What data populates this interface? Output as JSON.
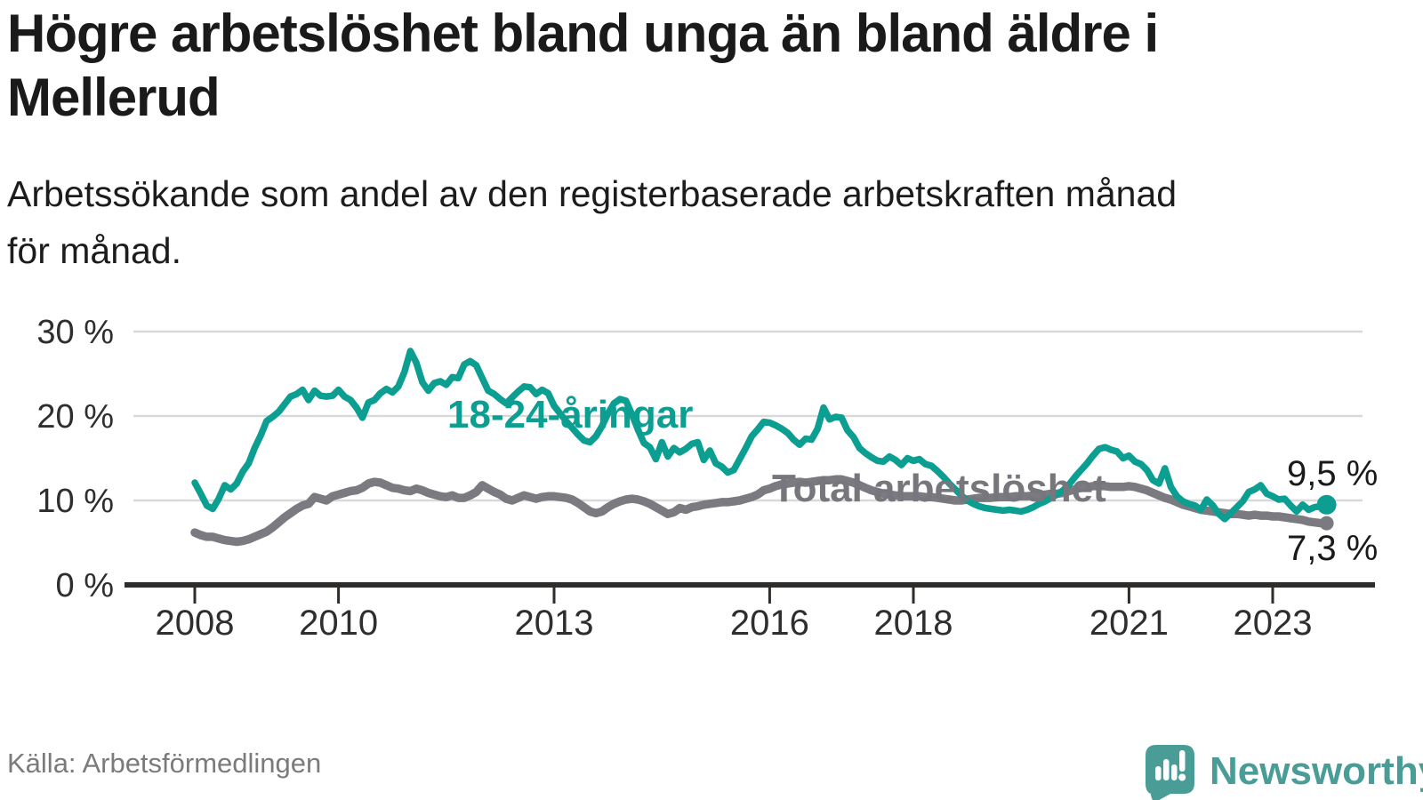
{
  "header": {
    "title_lines": [
      "Högre arbetslöshet bland unga än bland äldre i",
      "Mellerud"
    ],
    "subtitle_lines": [
      "Arbetssökande som andel av den registerbaserade arbetskraften månad",
      "för månad."
    ]
  },
  "footer": {
    "source": "Källa: Arbetsförmedlingen",
    "logo_text": "Newsworthy"
  },
  "colors": {
    "youth_teal": "#0d9e92",
    "total_gray": "#7b7a80",
    "label_gray": "#77767c",
    "gridline": "#d9d9d9",
    "axis": "#2e2d2c",
    "text_dark": "#1a1a1a",
    "logo_teal": "#4a9d97"
  },
  "chart_data": {
    "type": "line",
    "title": "Högre arbetslöshet bland unga än bland äldre i Mellerud",
    "subtitle": "Arbetssökande som andel av den registerbaserade arbetskraften månad för månad.",
    "x_unit": "month",
    "x_start": "2008-01",
    "x_end": "2023-10",
    "grid": "horizontal",
    "legend_position": "inline-labels",
    "y_axis": {
      "unit": "%",
      "ylim": [
        0,
        32
      ],
      "tick_values": [
        30,
        20,
        10,
        0
      ],
      "tick_labels": [
        "30 %",
        "20 %",
        "10 %",
        "0 %"
      ]
    },
    "x_axis": {
      "tick_years": [
        2008,
        2010,
        2013,
        2016,
        2018,
        2021,
        2023
      ],
      "tick_labels": [
        "2008",
        "2010",
        "2013",
        "2016",
        "2018",
        "2021",
        "2023"
      ]
    },
    "series": [
      {
        "name": "18-24-åringar",
        "label_text": "18-24-åringar",
        "end_label": "9,5 %",
        "end_value": 9.5,
        "color": "#0d9e92",
        "values": [
          12.1,
          10.8,
          9.4,
          9.0,
          10.2,
          11.8,
          11.3,
          12.0,
          13.4,
          14.4,
          16.2,
          17.7,
          19.4,
          19.9,
          20.5,
          21.4,
          22.3,
          22.6,
          23.1,
          21.9,
          23.0,
          22.4,
          22.3,
          22.4,
          23.1,
          22.3,
          21.9,
          21.0,
          19.8,
          21.6,
          21.9,
          22.7,
          23.2,
          22.8,
          23.5,
          25.2,
          27.7,
          26.3,
          24.0,
          23.0,
          23.9,
          24.1,
          23.7,
          24.6,
          24.5,
          26.1,
          26.5,
          26.0,
          24.5,
          23.0,
          22.6,
          22.0,
          21.5,
          22.2,
          22.9,
          23.5,
          23.4,
          22.6,
          23.1,
          22.7,
          21.2,
          20.3,
          19.4,
          18.6,
          17.8,
          17.1,
          16.9,
          17.6,
          18.8,
          20.3,
          21.5,
          22.0,
          21.8,
          20.2,
          18.4,
          16.8,
          16.3,
          14.9,
          16.9,
          15.2,
          16.2,
          15.7,
          16.1,
          16.7,
          16.9,
          14.8,
          15.9,
          14.4,
          14.0,
          13.3,
          13.6,
          14.9,
          16.2,
          17.6,
          18.4,
          19.3,
          19.2,
          18.9,
          18.5,
          18.0,
          17.2,
          16.6,
          17.3,
          17.2,
          18.5,
          21.0,
          19.6,
          19.9,
          19.8,
          18.3,
          17.5,
          16.2,
          15.6,
          15.1,
          14.7,
          14.6,
          15.2,
          14.8,
          14.2,
          15.0,
          14.7,
          14.9,
          14.3,
          14.1,
          13.5,
          12.8,
          12.0,
          11.3,
          10.6,
          10.0,
          9.6,
          9.3,
          9.1,
          9.0,
          8.9,
          8.8,
          8.9,
          8.8,
          8.7,
          8.9,
          9.2,
          9.6,
          9.9,
          10.3,
          10.7,
          11.2,
          11.9,
          12.8,
          13.6,
          14.4,
          15.3,
          16.1,
          16.3,
          16.0,
          15.8,
          15.0,
          15.3,
          14.6,
          14.3,
          13.6,
          12.4,
          12.0,
          13.8,
          11.6,
          10.5,
          9.9,
          9.6,
          9.4,
          8.9,
          10.1,
          9.4,
          8.4,
          7.8,
          8.5,
          9.2,
          9.9,
          11.0,
          11.3,
          11.8,
          10.8,
          10.5,
          10.1,
          10.2,
          9.4,
          8.7,
          9.5,
          8.9,
          9.2,
          9.3,
          9.5
        ]
      },
      {
        "name": "Total arbetslöshet",
        "label_text": "Total arbetslöshet",
        "end_label": "7,3 %",
        "end_value": 7.3,
        "color": "#7b7a80",
        "values": [
          6.2,
          5.9,
          5.7,
          5.7,
          5.5,
          5.3,
          5.2,
          5.1,
          5.2,
          5.4,
          5.7,
          6.0,
          6.3,
          6.8,
          7.4,
          8.0,
          8.5,
          9.0,
          9.4,
          9.6,
          10.4,
          10.2,
          10.0,
          10.5,
          10.7,
          10.9,
          11.1,
          11.2,
          11.5,
          12.0,
          12.2,
          12.1,
          11.8,
          11.5,
          11.4,
          11.2,
          11.1,
          11.4,
          11.2,
          10.9,
          10.7,
          10.5,
          10.4,
          10.6,
          10.3,
          10.3,
          10.6,
          11.0,
          11.8,
          11.4,
          11.0,
          10.7,
          10.2,
          10.0,
          10.3,
          10.6,
          10.4,
          10.2,
          10.4,
          10.5,
          10.5,
          10.4,
          10.3,
          10.1,
          9.7,
          9.2,
          8.7,
          8.5,
          8.7,
          9.2,
          9.6,
          9.9,
          10.1,
          10.2,
          10.1,
          9.9,
          9.6,
          9.2,
          8.8,
          8.4,
          8.6,
          9.1,
          8.9,
          9.2,
          9.3,
          9.5,
          9.6,
          9.7,
          9.8,
          9.8,
          9.9,
          10.0,
          10.2,
          10.4,
          10.7,
          11.2,
          11.4,
          11.7,
          11.9,
          12.0,
          12.1,
          12.2,
          12.1,
          12.2,
          12.3,
          12.4,
          12.4,
          12.5,
          12.5,
          12.3,
          12.1,
          11.8,
          11.5,
          11.2,
          11.0,
          10.8,
          10.7,
          10.6,
          10.5,
          10.5,
          10.5,
          10.5,
          10.4,
          10.4,
          10.3,
          10.2,
          10.1,
          10.0,
          10.0,
          10.1,
          10.2,
          10.3,
          10.3,
          10.3,
          10.4,
          10.4,
          10.4,
          10.5,
          10.5,
          10.5,
          10.6,
          10.6,
          10.7,
          10.8,
          10.8,
          10.9,
          11.1,
          11.3,
          11.5,
          11.6,
          11.7,
          11.7,
          11.7,
          11.6,
          11.6,
          11.6,
          11.7,
          11.6,
          11.4,
          11.2,
          10.9,
          10.6,
          10.3,
          10.1,
          9.8,
          9.5,
          9.3,
          9.1,
          8.9,
          8.8,
          8.7,
          8.6,
          8.5,
          8.4,
          8.4,
          8.3,
          8.2,
          8.3,
          8.2,
          8.2,
          8.1,
          8.1,
          8.0,
          7.9,
          7.8,
          7.7,
          7.5,
          7.4,
          7.3,
          7.3
        ]
      }
    ]
  }
}
